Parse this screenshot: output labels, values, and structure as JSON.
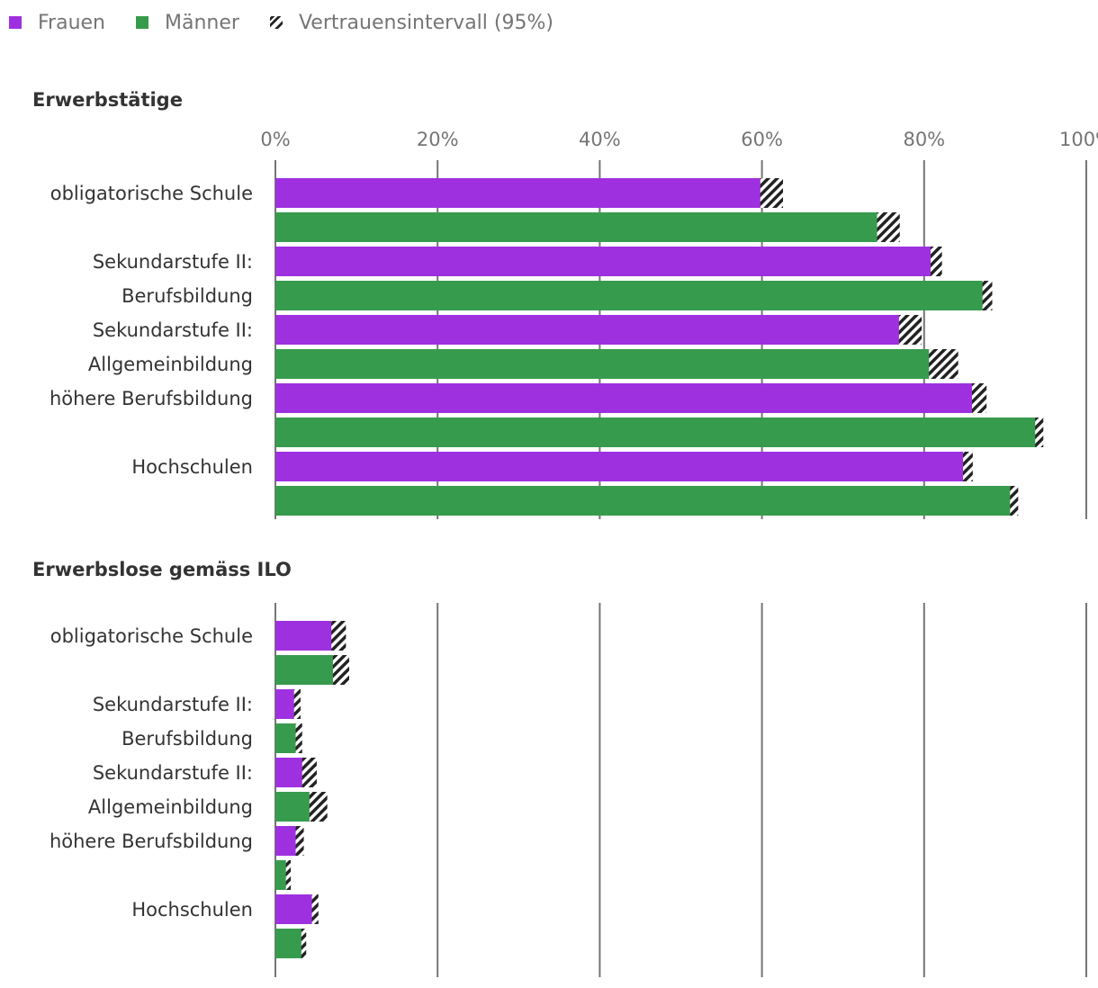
{
  "legend": {
    "women": "Frauen",
    "men": "Männer",
    "ci": "Vertrauensintervall (95%)"
  },
  "colors": {
    "women": "#9f30e0",
    "men": "#379b4d",
    "grid": "#757575",
    "ci": "#222222"
  },
  "chart_data": [
    {
      "type": "bar",
      "orientation": "horizontal",
      "title": "Erwerbstätige",
      "xlim": [
        0,
        100
      ],
      "xticks": [
        "0%",
        "20%",
        "40%",
        "60%",
        "80%",
        "100%"
      ],
      "groups": [
        {
          "label_lines": [
            "obligatorische Schule"
          ],
          "women": 61.2,
          "women_ci": 1.4,
          "men": 75.6,
          "men_ci": 1.4
        },
        {
          "label_lines": [
            "Sekundarstufe II:",
            "Berufsbildung"
          ],
          "women": 81.5,
          "women_ci": 0.7,
          "men": 87.8,
          "men_ci": 0.6
        },
        {
          "label_lines": [
            "Sekundarstufe II:",
            "Allgemeinbildung"
          ],
          "women": 78.3,
          "women_ci": 1.4,
          "men": 82.4,
          "men_ci": 1.8
        },
        {
          "label_lines": [
            "höhere Berufsbildung"
          ],
          "women": 86.8,
          "women_ci": 0.9,
          "men": 94.2,
          "men_ci": 0.5
        },
        {
          "label_lines": [
            "Hochschulen"
          ],
          "women": 85.4,
          "women_ci": 0.6,
          "men": 91.1,
          "men_ci": 0.5
        }
      ]
    },
    {
      "type": "bar",
      "orientation": "horizontal",
      "title": "Erwerbslose gemäss ILO",
      "xlim": [
        0,
        100
      ],
      "groups": [
        {
          "label_lines": [
            "obligatorische Schule"
          ],
          "women": 7.8,
          "women_ci": 0.9,
          "men": 8.1,
          "men_ci": 1.0
        },
        {
          "label_lines": [
            "Sekundarstufe II:",
            "Berufsbildung"
          ],
          "women": 2.7,
          "women_ci": 0.4,
          "men": 2.9,
          "men_ci": 0.4
        },
        {
          "label_lines": [
            "Sekundarstufe II:",
            "Allgemeinbildung"
          ],
          "women": 4.2,
          "women_ci": 0.9,
          "men": 5.3,
          "men_ci": 1.1
        },
        {
          "label_lines": [
            "höhere Berufsbildung"
          ],
          "women": 3.0,
          "women_ci": 0.5,
          "men": 1.6,
          "men_ci": 0.3
        },
        {
          "label_lines": [
            "Hochschulen"
          ],
          "women": 4.9,
          "women_ci": 0.4,
          "men": 3.5,
          "men_ci": 0.3
        }
      ]
    }
  ]
}
